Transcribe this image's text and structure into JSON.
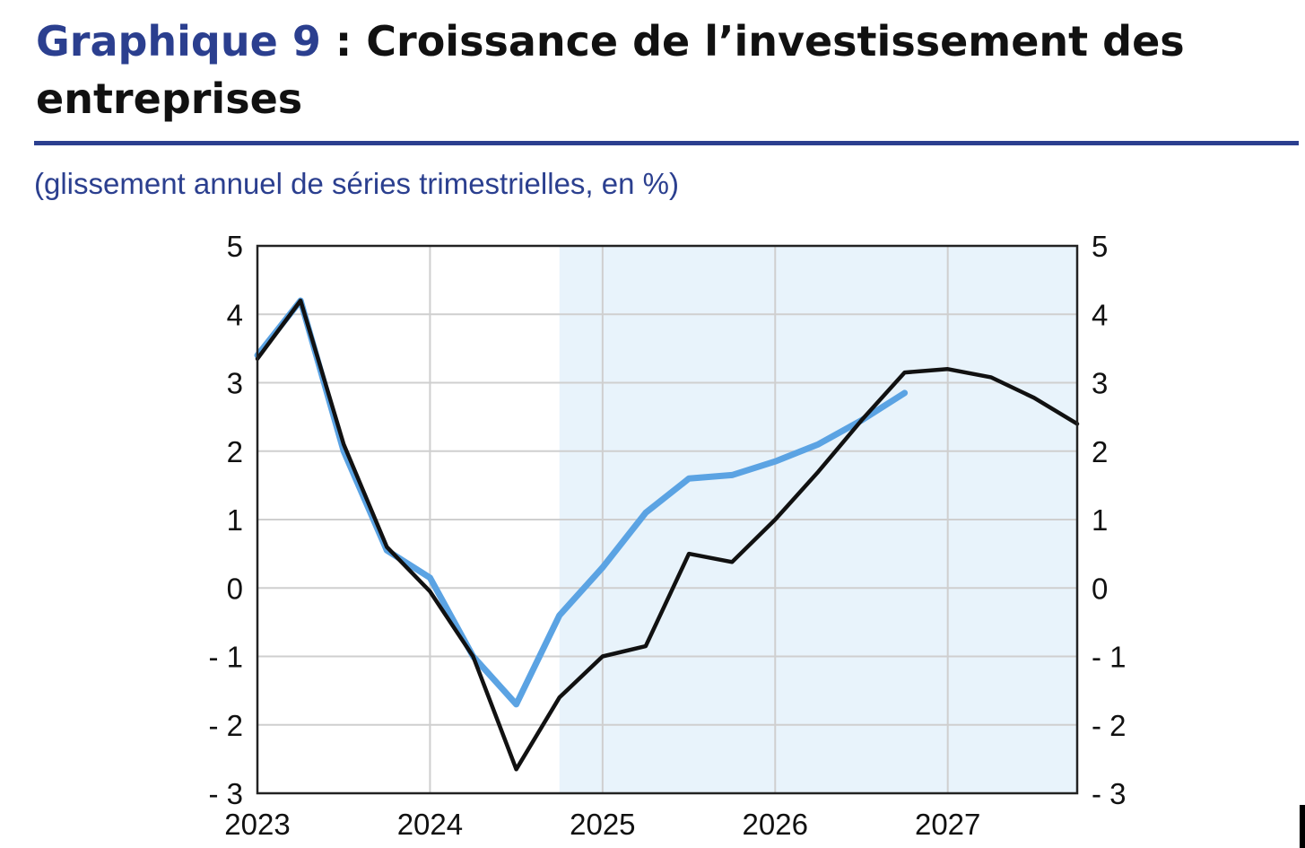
{
  "header": {
    "title_accent": "Graphique 9",
    "title_rest": " : Croissance de l’investissement des entreprises",
    "subtitle": "(glissement annuel de séries trimestrielles, en %)"
  },
  "chart_data": {
    "type": "line",
    "x": [
      2023.0,
      2023.25,
      2023.5,
      2023.75,
      2024.0,
      2024.25,
      2024.5,
      2024.75,
      2025.0,
      2025.25,
      2025.5,
      2025.75,
      2026.0,
      2026.25,
      2026.5,
      2026.75,
      2027.0,
      2027.25,
      2027.5,
      2027.75
    ],
    "series": [
      {
        "color": "#5ba3e3",
        "values": [
          3.4,
          4.2,
          2.0,
          0.55,
          0.15,
          -1.0,
          -1.7,
          -0.4,
          0.3,
          1.1,
          1.6,
          1.65,
          1.85,
          2.1,
          2.45,
          2.85,
          null,
          null,
          null,
          null
        ]
      },
      {
        "color": "#111111",
        "values": [
          3.35,
          4.2,
          2.1,
          0.6,
          -0.05,
          -1.0,
          -2.65,
          -1.6,
          -1.0,
          -0.85,
          0.5,
          0.38,
          1.0,
          1.7,
          2.45,
          3.15,
          3.2,
          3.08,
          2.78,
          2.4
        ]
      }
    ],
    "xlim": [
      2023,
      2027.75
    ],
    "ylim": [
      -3,
      5
    ],
    "yticks_left": [
      "5",
      "4",
      "3",
      "2",
      "1",
      "0",
      "- 1",
      "- 2",
      "- 3"
    ],
    "yticks_right": [
      "5",
      "4",
      "3",
      "2",
      "1",
      "0",
      "- 1",
      "- 2",
      "- 3"
    ],
    "xticks": [
      "2023",
      "2024",
      "2025",
      "2026",
      "2027"
    ],
    "shaded_region": {
      "from": 2024.75,
      "to": 2027.75,
      "color": "#e8f3fb"
    },
    "grid": true,
    "colors": {
      "grid": "#cfcfcf",
      "frame": "#222222",
      "accent": "#2b3f8f"
    }
  }
}
